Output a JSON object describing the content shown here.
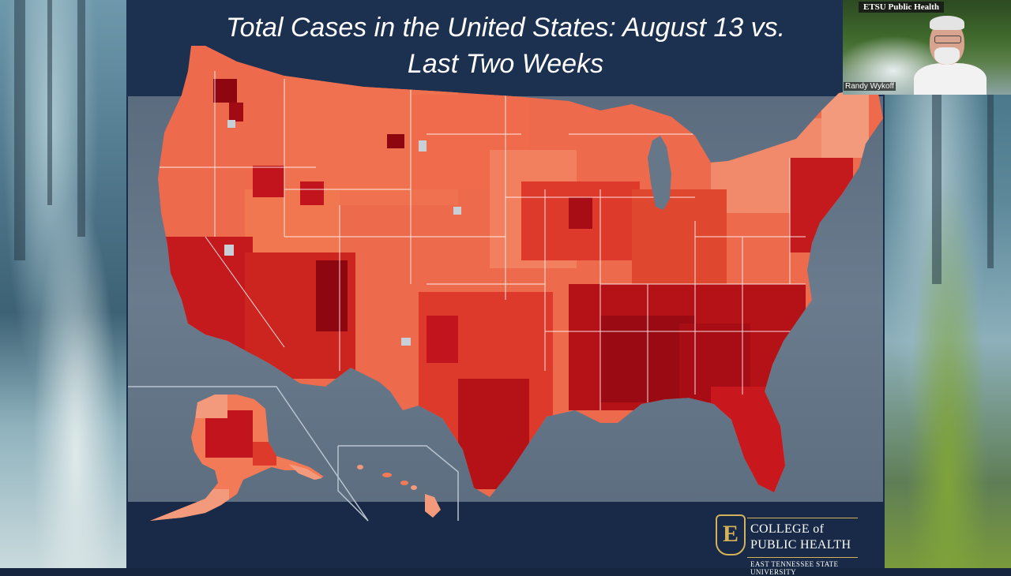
{
  "slide": {
    "title_line1": "Total Cases in the United States:  August 13  vs.",
    "title_line2": "Last Two Weeks"
  },
  "logo": {
    "mark": "E",
    "line1": "COLLEGE of",
    "line2": "PUBLIC HEALTH",
    "line3": "EAST TENNESSEE STATE UNIVERSITY"
  },
  "webcam": {
    "channel_label": "ETSU Public Health",
    "participant_name": "Randy Wykoff"
  },
  "map": {
    "colors": {
      "darkest": "#8e0610",
      "dark": "#c1141c",
      "medium": "#dd3a2c",
      "light": "#ee6a4c",
      "lighter": "#f79477",
      "no_data": "#c9cfd6",
      "ocean": "#66778a",
      "boundary": "#ffffff"
    }
  },
  "colors": {
    "slide_background": "#1a2d4b",
    "title_text": "#ffffff",
    "logo_gold": "#d4b25a"
  }
}
